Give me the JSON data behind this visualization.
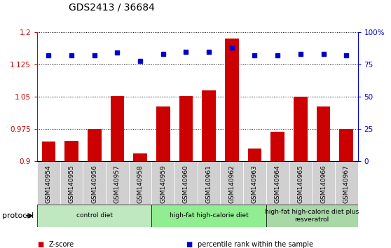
{
  "title": "GDS2413 / 36684",
  "samples": [
    "GSM140954",
    "GSM140955",
    "GSM140956",
    "GSM140957",
    "GSM140958",
    "GSM140959",
    "GSM140960",
    "GSM140961",
    "GSM140962",
    "GSM140963",
    "GSM140964",
    "GSM140965",
    "GSM140966",
    "GSM140967"
  ],
  "zscore": [
    0.945,
    0.948,
    0.975,
    1.052,
    0.918,
    1.028,
    1.052,
    1.065,
    1.185,
    0.93,
    0.968,
    1.05,
    1.028,
    0.975
  ],
  "percentile": [
    82,
    82,
    82,
    84,
    78,
    83,
    85,
    85,
    88,
    82,
    82,
    83,
    83,
    82
  ],
  "ylim_left": [
    0.9,
    1.2
  ],
  "ylim_right": [
    0,
    100
  ],
  "yticks_left": [
    0.9,
    0.975,
    1.05,
    1.125,
    1.2
  ],
  "yticks_right": [
    0,
    25,
    50,
    75,
    100
  ],
  "ytick_labels_left": [
    "0.9",
    "0.975",
    "1.05",
    "1.125",
    "1.2"
  ],
  "ytick_labels_right": [
    "0",
    "25",
    "50",
    "75",
    "100%"
  ],
  "bar_color": "#cc0000",
  "dot_color": "#0000cc",
  "background_color": "#ffffff",
  "label_bg_color": "#d0d0d0",
  "groups": [
    {
      "label": "control diet",
      "start": 0,
      "end": 5,
      "color": "#c0e8c0"
    },
    {
      "label": "high-fat high-calorie diet",
      "start": 5,
      "end": 10,
      "color": "#90ee90"
    },
    {
      "label": "high-fat high-calorie diet plus\nresveratrol",
      "start": 10,
      "end": 14,
      "color": "#a8d8a8"
    }
  ],
  "protocol_label": "protocol",
  "legend_items": [
    {
      "color": "#cc0000",
      "label": "Z-score"
    },
    {
      "color": "#0000cc",
      "label": "percentile rank within the sample"
    }
  ]
}
